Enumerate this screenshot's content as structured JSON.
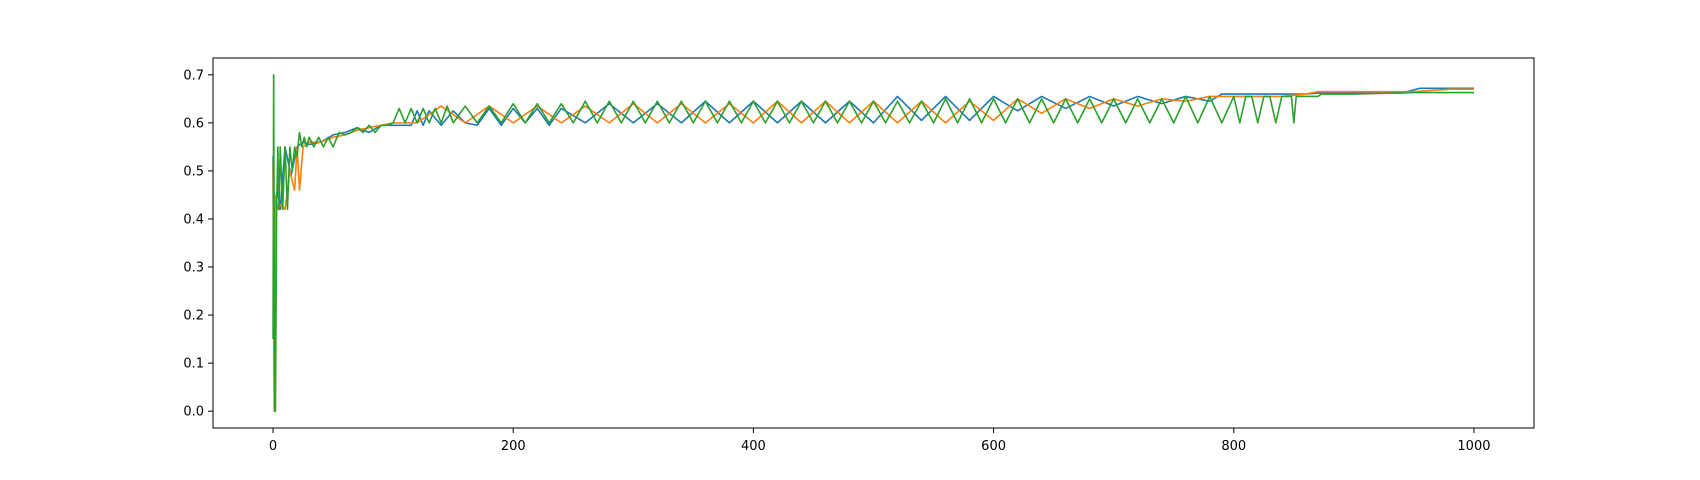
{
  "chart_data": {
    "type": "line",
    "title": "",
    "xlabel": "",
    "ylabel": "",
    "xlim": [
      -50,
      1050
    ],
    "ylim": [
      -0.035,
      0.735
    ],
    "x_ticks": [
      0,
      200,
      400,
      600,
      800,
      1000
    ],
    "x_tick_labels": [
      "0",
      "200",
      "400",
      "600",
      "800",
      "1000"
    ],
    "y_ticks": [
      0.0,
      0.1,
      0.2,
      0.3,
      0.4,
      0.5,
      0.6,
      0.7
    ],
    "y_tick_labels": [
      "0.0",
      "0.1",
      "0.2",
      "0.3",
      "0.4",
      "0.5",
      "0.6",
      "0.7"
    ],
    "grid": false,
    "legend": "none",
    "series": [
      {
        "color": "#1f77b4",
        "x": [
          0,
          1,
          2,
          4,
          6,
          10,
          15,
          20,
          25,
          30,
          40,
          50,
          60,
          70,
          80,
          90,
          100,
          115,
          120,
          125,
          130,
          140,
          150,
          160,
          170,
          180,
          190,
          200,
          210,
          220,
          230,
          240,
          260,
          280,
          300,
          320,
          340,
          360,
          380,
          400,
          420,
          440,
          460,
          480,
          500,
          520,
          540,
          560,
          580,
          600,
          620,
          640,
          660,
          680,
          700,
          720,
          740,
          760,
          780,
          790,
          800,
          820,
          840,
          860,
          870,
          880,
          900,
          920,
          940,
          955,
          960,
          980,
          1000
        ],
        "y": [
          0.53,
          0.0,
          0.42,
          0.46,
          0.42,
          0.55,
          0.49,
          0.55,
          0.56,
          0.555,
          0.56,
          0.575,
          0.58,
          0.59,
          0.58,
          0.595,
          0.595,
          0.595,
          0.625,
          0.595,
          0.625,
          0.595,
          0.625,
          0.6,
          0.595,
          0.63,
          0.595,
          0.63,
          0.6,
          0.63,
          0.595,
          0.63,
          0.6,
          0.64,
          0.6,
          0.64,
          0.6,
          0.645,
          0.6,
          0.645,
          0.6,
          0.645,
          0.6,
          0.645,
          0.6,
          0.655,
          0.605,
          0.655,
          0.605,
          0.655,
          0.625,
          0.655,
          0.63,
          0.655,
          0.635,
          0.655,
          0.64,
          0.655,
          0.645,
          0.66,
          0.66,
          0.66,
          0.66,
          0.66,
          0.662,
          0.662,
          0.662,
          0.662,
          0.662,
          0.672,
          0.672,
          0.672,
          0.672
        ]
      },
      {
        "color": "#ff7f0e",
        "x": [
          0,
          1,
          2,
          4,
          6,
          10,
          14,
          18,
          20,
          22,
          25,
          30,
          40,
          50,
          60,
          70,
          80,
          90,
          100,
          120,
          140,
          160,
          180,
          200,
          220,
          240,
          260,
          280,
          300,
          320,
          340,
          360,
          380,
          400,
          420,
          440,
          460,
          480,
          500,
          520,
          540,
          560,
          580,
          600,
          620,
          640,
          660,
          680,
          700,
          720,
          740,
          760,
          780,
          800,
          820,
          840,
          860,
          870,
          900,
          950,
          980,
          1000
        ],
        "y": [
          0.52,
          0.0,
          0.45,
          0.42,
          0.43,
          0.42,
          0.5,
          0.46,
          0.55,
          0.46,
          0.55,
          0.56,
          0.56,
          0.57,
          0.575,
          0.585,
          0.59,
          0.595,
          0.6,
          0.6,
          0.635,
          0.6,
          0.635,
          0.6,
          0.635,
          0.6,
          0.635,
          0.6,
          0.64,
          0.6,
          0.64,
          0.6,
          0.64,
          0.6,
          0.645,
          0.6,
          0.645,
          0.6,
          0.645,
          0.6,
          0.645,
          0.6,
          0.645,
          0.605,
          0.65,
          0.62,
          0.65,
          0.63,
          0.65,
          0.635,
          0.65,
          0.645,
          0.655,
          0.655,
          0.655,
          0.655,
          0.66,
          0.665,
          0.665,
          0.665,
          0.67,
          0.67
        ]
      },
      {
        "color": "#2ca02c",
        "x": [
          0,
          0.5,
          1,
          1.5,
          2,
          3,
          4,
          5,
          6,
          8,
          10,
          12,
          14,
          16,
          18,
          20,
          22,
          24,
          26,
          28,
          30,
          34,
          38,
          42,
          46,
          50,
          55,
          60,
          65,
          70,
          75,
          80,
          85,
          90,
          95,
          100,
          105,
          110,
          115,
          120,
          125,
          130,
          135,
          140,
          145,
          150,
          160,
          170,
          180,
          190,
          200,
          210,
          220,
          230,
          240,
          250,
          260,
          270,
          280,
          290,
          300,
          310,
          320,
          330,
          340,
          350,
          360,
          370,
          380,
          390,
          400,
          410,
          420,
          430,
          440,
          450,
          460,
          470,
          480,
          490,
          500,
          510,
          520,
          530,
          540,
          550,
          560,
          570,
          580,
          590,
          600,
          610,
          620,
          630,
          640,
          650,
          660,
          670,
          680,
          690,
          700,
          710,
          720,
          730,
          740,
          750,
          760,
          770,
          780,
          790,
          800,
          805,
          810,
          815,
          820,
          825,
          830,
          835,
          840,
          845,
          848,
          850,
          852,
          860,
          870,
          873,
          880,
          900,
          950,
          1000
        ],
        "y": [
          0.15,
          0.7,
          0.3,
          0.0,
          0.0,
          0.42,
          0.55,
          0.42,
          0.55,
          0.42,
          0.55,
          0.42,
          0.55,
          0.5,
          0.55,
          0.53,
          0.58,
          0.55,
          0.57,
          0.55,
          0.57,
          0.55,
          0.57,
          0.55,
          0.57,
          0.55,
          0.58,
          0.575,
          0.58,
          0.59,
          0.58,
          0.595,
          0.58,
          0.595,
          0.595,
          0.6,
          0.63,
          0.6,
          0.63,
          0.6,
          0.63,
          0.6,
          0.63,
          0.6,
          0.635,
          0.6,
          0.635,
          0.6,
          0.635,
          0.6,
          0.64,
          0.6,
          0.64,
          0.6,
          0.64,
          0.6,
          0.645,
          0.6,
          0.645,
          0.6,
          0.645,
          0.6,
          0.645,
          0.6,
          0.645,
          0.6,
          0.645,
          0.6,
          0.645,
          0.6,
          0.645,
          0.6,
          0.645,
          0.6,
          0.645,
          0.6,
          0.645,
          0.6,
          0.645,
          0.6,
          0.645,
          0.6,
          0.645,
          0.6,
          0.645,
          0.6,
          0.65,
          0.6,
          0.65,
          0.6,
          0.65,
          0.6,
          0.65,
          0.6,
          0.65,
          0.6,
          0.65,
          0.6,
          0.65,
          0.6,
          0.65,
          0.6,
          0.65,
          0.6,
          0.65,
          0.6,
          0.655,
          0.6,
          0.655,
          0.6,
          0.655,
          0.6,
          0.655,
          0.655,
          0.6,
          0.655,
          0.655,
          0.6,
          0.655,
          0.655,
          0.655,
          0.6,
          0.655,
          0.655,
          0.655,
          0.66,
          0.66,
          0.66,
          0.663,
          0.663
        ]
      }
    ]
  }
}
